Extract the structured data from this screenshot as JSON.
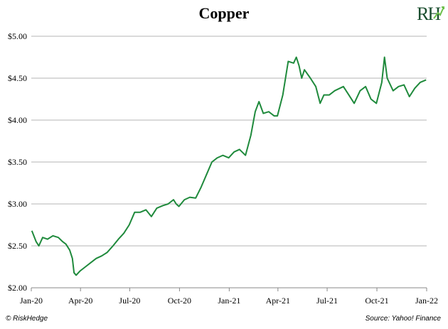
{
  "chart_data": {
    "type": "line",
    "title": "Copper",
    "xlabel": "",
    "ylabel": "",
    "ylim": [
      2.0,
      5.0
    ],
    "xlim": [
      "2020-01-01",
      "2022-01-01"
    ],
    "grid": "horizontal",
    "yticks": [
      {
        "value": 2.0,
        "label": "$2.00"
      },
      {
        "value": 2.5,
        "label": "$2.50"
      },
      {
        "value": 3.0,
        "label": "$3.00"
      },
      {
        "value": 3.5,
        "label": "$3.50"
      },
      {
        "value": 4.0,
        "label": "$4.00"
      },
      {
        "value": 4.5,
        "label": "$4.50"
      },
      {
        "value": 5.0,
        "label": "$5.00"
      }
    ],
    "xticks": [
      {
        "value": "2020-01-01",
        "label": "Jan-20"
      },
      {
        "value": "2020-04-01",
        "label": "Apr-20"
      },
      {
        "value": "2020-07-01",
        "label": "Jul-20"
      },
      {
        "value": "2020-10-01",
        "label": "Oct-20"
      },
      {
        "value": "2021-01-01",
        "label": "Jan-21"
      },
      {
        "value": "2021-04-01",
        "label": "Apr-21"
      },
      {
        "value": "2021-07-01",
        "label": "Jul-21"
      },
      {
        "value": "2021-10-01",
        "label": "Oct-21"
      },
      {
        "value": "2022-01-01",
        "label": "Jan-22"
      }
    ],
    "series": [
      {
        "color": "#1f8a3c",
        "x": [
          "2020-01-02",
          "2020-01-10",
          "2020-01-15",
          "2020-01-22",
          "2020-01-31",
          "2020-02-10",
          "2020-02-20",
          "2020-02-28",
          "2020-03-05",
          "2020-03-12",
          "2020-03-17",
          "2020-03-20",
          "2020-03-24",
          "2020-03-31",
          "2020-04-10",
          "2020-04-20",
          "2020-04-30",
          "2020-05-10",
          "2020-05-20",
          "2020-05-31",
          "2020-06-10",
          "2020-06-20",
          "2020-06-30",
          "2020-07-10",
          "2020-07-20",
          "2020-07-31",
          "2020-08-10",
          "2020-08-20",
          "2020-08-31",
          "2020-09-10",
          "2020-09-20",
          "2020-09-25",
          "2020-09-30",
          "2020-10-10",
          "2020-10-20",
          "2020-10-31",
          "2020-11-10",
          "2020-11-20",
          "2020-11-30",
          "2020-12-10",
          "2020-12-20",
          "2020-12-31",
          "2021-01-10",
          "2021-01-20",
          "2021-01-31",
          "2021-02-10",
          "2021-02-18",
          "2021-02-25",
          "2021-03-05",
          "2021-03-15",
          "2021-03-25",
          "2021-03-31",
          "2021-04-10",
          "2021-04-20",
          "2021-04-30",
          "2021-05-05",
          "2021-05-10",
          "2021-05-15",
          "2021-05-20",
          "2021-05-31",
          "2021-06-10",
          "2021-06-18",
          "2021-06-25",
          "2021-07-05",
          "2021-07-15",
          "2021-07-31",
          "2021-08-10",
          "2021-08-20",
          "2021-08-31",
          "2021-09-10",
          "2021-09-20",
          "2021-09-30",
          "2021-10-10",
          "2021-10-15",
          "2021-10-20",
          "2021-10-31",
          "2021-11-10",
          "2021-11-20",
          "2021-11-30",
          "2021-12-10",
          "2021-12-20",
          "2021-12-31"
        ],
        "values": [
          2.68,
          2.55,
          2.5,
          2.6,
          2.58,
          2.62,
          2.6,
          2.55,
          2.52,
          2.45,
          2.35,
          2.18,
          2.15,
          2.2,
          2.25,
          2.3,
          2.35,
          2.38,
          2.42,
          2.5,
          2.58,
          2.65,
          2.75,
          2.9,
          2.9,
          2.93,
          2.85,
          2.95,
          2.98,
          3.0,
          3.05,
          3.0,
          2.97,
          3.05,
          3.08,
          3.07,
          3.2,
          3.35,
          3.5,
          3.55,
          3.58,
          3.55,
          3.62,
          3.65,
          3.58,
          3.82,
          4.1,
          4.22,
          4.08,
          4.1,
          4.05,
          4.05,
          4.3,
          4.7,
          4.68,
          4.75,
          4.65,
          4.5,
          4.6,
          4.5,
          4.4,
          4.2,
          4.3,
          4.3,
          4.35,
          4.4,
          4.3,
          4.2,
          4.35,
          4.4,
          4.25,
          4.2,
          4.45,
          4.75,
          4.5,
          4.35,
          4.4,
          4.42,
          4.28,
          4.38,
          4.45,
          4.48
        ]
      }
    ]
  },
  "logo": {
    "text": "RH",
    "color": "#1a4d2e",
    "accent": "#6cc04a"
  },
  "footer": {
    "left": "© RiskHedge",
    "right": "Source: Yahoo! Finance"
  }
}
